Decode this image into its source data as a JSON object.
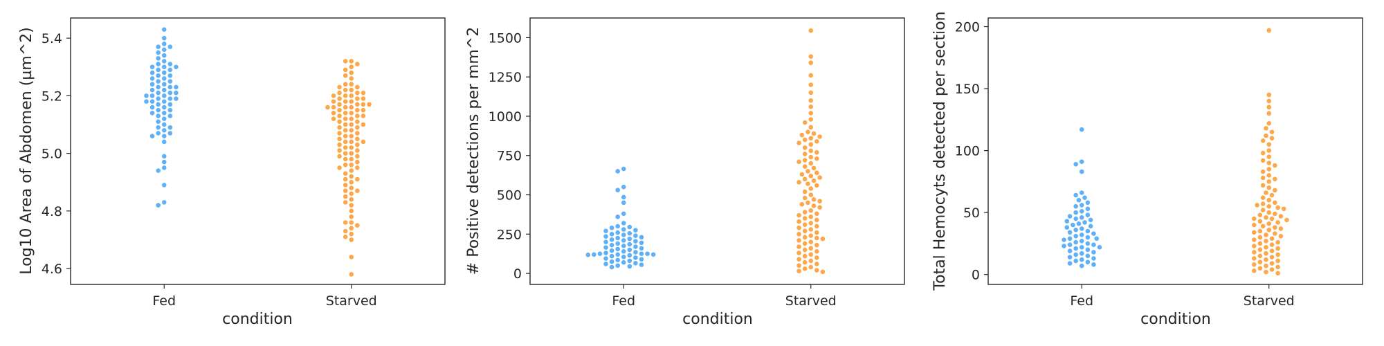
{
  "colors": {
    "Fed": "#5fb0f7",
    "Starved": "#fca84a",
    "axis": "#262626",
    "background": "#ffffff"
  },
  "chart_data": [
    {
      "type": "scatter",
      "style": "swarm",
      "title": "",
      "xlabel": "condition",
      "ylabel": "Log10 Area of Abdomen (µm^2)",
      "categories": [
        "Fed",
        "Starved"
      ],
      "ylim": [
        4.545,
        5.47
      ],
      "yticks": [
        4.6,
        4.8,
        5.0,
        5.2,
        5.4
      ],
      "ytick_labels": [
        "4.6",
        "4.8",
        "5.0",
        "5.2",
        "5.4"
      ],
      "grid": false,
      "series": [
        {
          "category": "Fed",
          "values": [
            5.43,
            5.4,
            5.38,
            5.37,
            5.37,
            5.36,
            5.35,
            5.34,
            5.33,
            5.32,
            5.31,
            5.31,
            5.3,
            5.3,
            5.3,
            5.29,
            5.29,
            5.28,
            5.28,
            5.27,
            5.27,
            5.26,
            5.26,
            5.25,
            5.25,
            5.24,
            5.24,
            5.23,
            5.23,
            5.23,
            5.22,
            5.22,
            5.21,
            5.21,
            5.21,
            5.2,
            5.2,
            5.2,
            5.19,
            5.19,
            5.19,
            5.18,
            5.18,
            5.18,
            5.17,
            5.17,
            5.16,
            5.16,
            5.15,
            5.15,
            5.14,
            5.14,
            5.13,
            5.13,
            5.12,
            5.11,
            5.1,
            5.09,
            5.09,
            5.08,
            5.07,
            5.07,
            5.06,
            5.06,
            5.04,
            4.99,
            4.97,
            4.95,
            4.94,
            4.89,
            4.83,
            4.82
          ]
        },
        {
          "category": "Starved",
          "values": [
            5.32,
            5.32,
            5.31,
            5.3,
            5.29,
            5.28,
            5.27,
            5.26,
            5.24,
            5.24,
            5.23,
            5.23,
            5.22,
            5.22,
            5.21,
            5.21,
            5.21,
            5.2,
            5.2,
            5.2,
            5.19,
            5.19,
            5.19,
            5.18,
            5.18,
            5.18,
            5.17,
            5.17,
            5.17,
            5.17,
            5.16,
            5.16,
            5.16,
            5.16,
            5.15,
            5.15,
            5.15,
            5.14,
            5.14,
            5.14,
            5.13,
            5.13,
            5.13,
            5.12,
            5.12,
            5.12,
            5.11,
            5.11,
            5.1,
            5.1,
            5.1,
            5.09,
            5.09,
            5.08,
            5.08,
            5.07,
            5.07,
            5.06,
            5.06,
            5.05,
            5.05,
            5.04,
            5.04,
            5.04,
            5.03,
            5.03,
            5.02,
            5.02,
            5.01,
            5.01,
            5.0,
            5.0,
            4.99,
            4.99,
            4.98,
            4.98,
            4.97,
            4.96,
            4.96,
            4.95,
            4.95,
            4.94,
            4.93,
            4.92,
            4.91,
            4.91,
            4.9,
            4.89,
            4.88,
            4.87,
            4.87,
            4.86,
            4.85,
            4.84,
            4.83,
            4.82,
            4.8,
            4.78,
            4.76,
            4.76,
            4.75,
            4.74,
            4.73,
            4.72,
            4.71,
            4.7,
            4.64,
            4.58
          ]
        }
      ]
    },
    {
      "type": "scatter",
      "style": "swarm",
      "title": "",
      "xlabel": "condition",
      "ylabel": "# Positive detections per mm^2",
      "categories": [
        "Fed",
        "Starved"
      ],
      "ylim": [
        -70,
        1625
      ],
      "yticks": [
        0,
        250,
        500,
        750,
        1000,
        1250,
        1500
      ],
      "ytick_labels": [
        "0",
        "250",
        "500",
        "750",
        "1000",
        "1250",
        "1500"
      ],
      "grid": false,
      "series": [
        {
          "category": "Fed",
          "values": [
            665,
            650,
            550,
            530,
            485,
            450,
            380,
            360,
            320,
            300,
            295,
            290,
            280,
            275,
            270,
            260,
            255,
            250,
            245,
            240,
            235,
            230,
            225,
            220,
            215,
            210,
            205,
            200,
            195,
            190,
            185,
            180,
            175,
            170,
            165,
            160,
            155,
            150,
            145,
            140,
            135,
            130,
            125,
            125,
            125,
            120,
            120,
            120,
            118,
            115,
            110,
            105,
            100,
            95,
            90,
            85,
            80,
            75,
            70,
            65,
            60,
            55,
            50,
            45,
            40
          ]
        },
        {
          "category": "Starved",
          "values": [
            1545,
            1380,
            1340,
            1260,
            1200,
            1150,
            1100,
            1060,
            1020,
            980,
            960,
            930,
            900,
            890,
            880,
            870,
            860,
            850,
            840,
            830,
            820,
            800,
            780,
            770,
            760,
            740,
            730,
            720,
            710,
            700,
            680,
            670,
            650,
            640,
            630,
            620,
            610,
            600,
            590,
            580,
            570,
            560,
            540,
            520,
            500,
            480,
            470,
            460,
            450,
            440,
            430,
            420,
            400,
            390,
            380,
            370,
            360,
            350,
            340,
            330,
            320,
            310,
            300,
            290,
            280,
            270,
            260,
            250,
            240,
            230,
            225,
            220,
            210,
            200,
            190,
            180,
            170,
            160,
            150,
            140,
            130,
            120,
            110,
            100,
            90,
            80,
            70,
            60,
            50,
            40,
            30,
            20,
            15,
            10
          ]
        }
      ]
    },
    {
      "type": "scatter",
      "style": "swarm",
      "title": "",
      "xlabel": "condition",
      "ylabel": "Total Hemocyts detected per section",
      "categories": [
        "Fed",
        "Starved"
      ],
      "ylim": [
        -8,
        207
      ],
      "yticks": [
        0,
        50,
        100,
        150,
        200
      ],
      "ytick_labels": [
        "0",
        "50",
        "100",
        "150",
        "200"
      ],
      "grid": false,
      "series": [
        {
          "category": "Fed",
          "values": [
            117,
            91,
            89,
            83,
            66,
            64,
            62,
            60,
            58,
            56,
            55,
            53,
            51,
            50,
            48,
            47,
            46,
            45,
            44,
            43,
            42,
            41,
            40,
            39,
            38,
            37,
            36,
            35,
            34,
            33,
            32,
            31,
            30,
            29,
            29,
            28,
            27,
            26,
            25,
            24,
            24,
            23,
            22,
            22,
            21,
            20,
            19,
            18,
            17,
            16,
            15,
            14,
            13,
            12,
            11,
            10,
            9,
            8,
            7
          ]
        },
        {
          "category": "Starved",
          "values": [
            197,
            145,
            140,
            135,
            130,
            122,
            118,
            115,
            112,
            110,
            108,
            105,
            100,
            98,
            95,
            92,
            90,
            88,
            85,
            83,
            80,
            78,
            77,
            75,
            72,
            70,
            68,
            66,
            64,
            62,
            60,
            58,
            57,
            56,
            55,
            54,
            53,
            52,
            50,
            49,
            48,
            47,
            46,
            45,
            45,
            44,
            43,
            42,
            41,
            40,
            39,
            38,
            37,
            36,
            35,
            34,
            33,
            32,
            31,
            30,
            29,
            28,
            27,
            26,
            25,
            24,
            23,
            22,
            21,
            20,
            19,
            18,
            17,
            16,
            15,
            14,
            13,
            12,
            11,
            10,
            9,
            8,
            7,
            6,
            5,
            4,
            3,
            2,
            1
          ]
        }
      ]
    }
  ]
}
